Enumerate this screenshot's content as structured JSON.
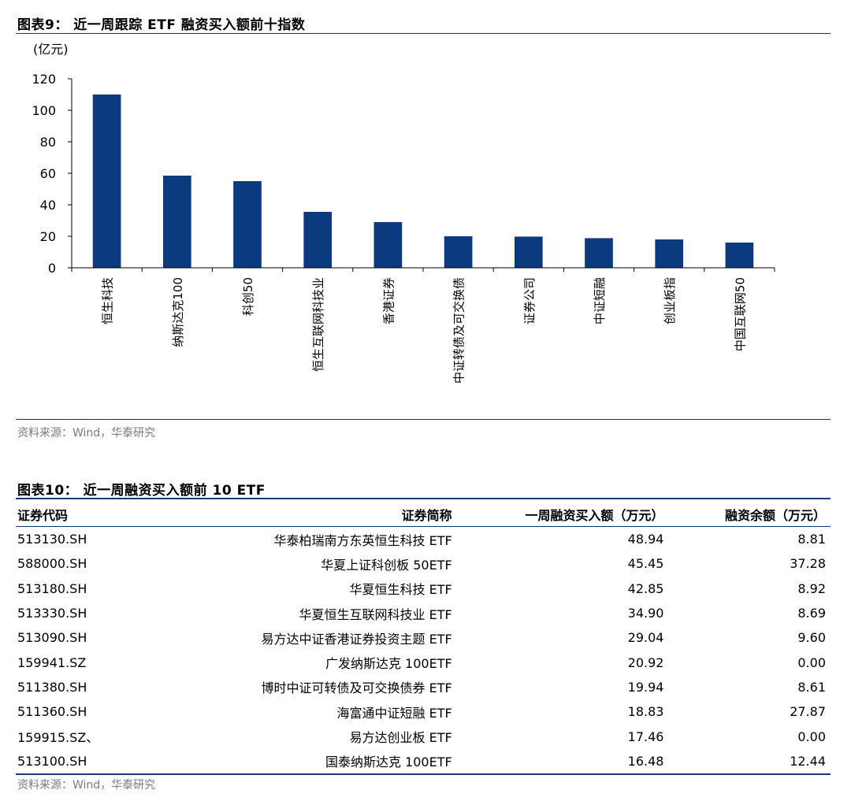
{
  "figure9": {
    "title": "图表9：  近一周跟踪 ETF 融资买入额前十指数",
    "source": "资料来源：Wind，华泰研究"
  },
  "chart_data": {
    "type": "bar",
    "title": "近一周跟踪 ETF 融资买入额前十指数",
    "unit_label": "(亿元)",
    "categories": [
      "恒生科技",
      "纳斯达克100",
      "科创50",
      "恒生互联网科技业",
      "香港证券",
      "中证转债及可交换债",
      "证券公司",
      "中证短融",
      "创业板指",
      "中国互联网50"
    ],
    "values": [
      110,
      58.5,
      55,
      35.5,
      29,
      20,
      19.8,
      18.8,
      18,
      16
    ],
    "ylim": [
      0,
      120
    ],
    "yticks": [
      0,
      20,
      40,
      60,
      80,
      100,
      120
    ],
    "bar_color": "#0b3a7e",
    "xlabel": "",
    "ylabel": "(亿元)"
  },
  "figure10": {
    "title": "图表10：  近一周融资买入额前 10 ETF",
    "source": "资料来源：Wind，华泰研究",
    "headers": [
      "证券代码",
      "证券简称",
      "一周融资买入额（万元）",
      "融资余额（万元）"
    ],
    "rows": [
      [
        "513130.SH",
        "华泰柏瑞南方东英恒生科技 ETF",
        "48.94",
        "8.81"
      ],
      [
        "588000.SH",
        "华夏上证科创板 50ETF",
        "45.45",
        "37.28"
      ],
      [
        "513180.SH",
        "华夏恒生科技 ETF",
        "42.85",
        "8.92"
      ],
      [
        "513330.SH",
        "华夏恒生互联网科技业 ETF",
        "34.90",
        "8.69"
      ],
      [
        "513090.SH",
        "易方达中证香港证券投资主题 ETF",
        "29.04",
        "9.60"
      ],
      [
        "159941.SZ",
        "广发纳斯达克 100ETF",
        "20.92",
        "0.00"
      ],
      [
        "511380.SH",
        "博时中证可转债及可交换债券 ETF",
        "19.94",
        "8.61"
      ],
      [
        "511360.SH",
        "海富通中证短融 ETF",
        "18.83",
        "27.87"
      ],
      [
        "159915.SZ、",
        "易方达创业板 ETF",
        "17.46",
        "0.00"
      ],
      [
        "513100.SH",
        "国泰纳斯达克 100ETF",
        "16.48",
        "12.44"
      ]
    ]
  }
}
